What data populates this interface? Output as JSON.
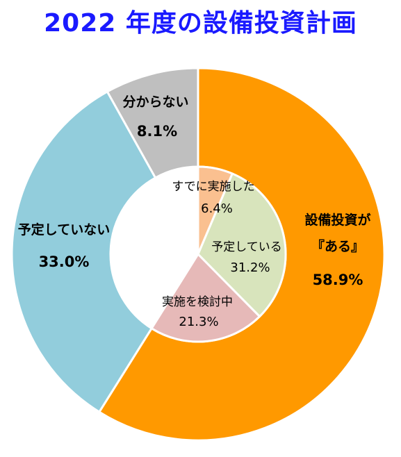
{
  "chart_data": {
    "type": "pie",
    "title": "2022 年度の設備投資計画",
    "outer_ring": [
      {
        "label": "設備投資が",
        "label2": "『ある』",
        "value": 58.9,
        "value_label": "58.9%",
        "color": "#ff9900"
      },
      {
        "label": "予定していない",
        "value": 33.0,
        "value_label": "33.0%",
        "color": "#92cddc"
      },
      {
        "label": "分からない",
        "value": 8.1,
        "value_label": "8.1%",
        "color": "#bfbfbf"
      }
    ],
    "inner_ring": [
      {
        "label": "すでに実施した",
        "value": 6.4,
        "value_label": "6.4%",
        "color": "#fac090"
      },
      {
        "label": "予定している",
        "value": 31.2,
        "value_label": "31.2%",
        "color": "#d8e4bc"
      },
      {
        "label": "実施を検討中",
        "value": 21.3,
        "value_label": "21.3%",
        "color": "#e6b9b8"
      }
    ]
  }
}
